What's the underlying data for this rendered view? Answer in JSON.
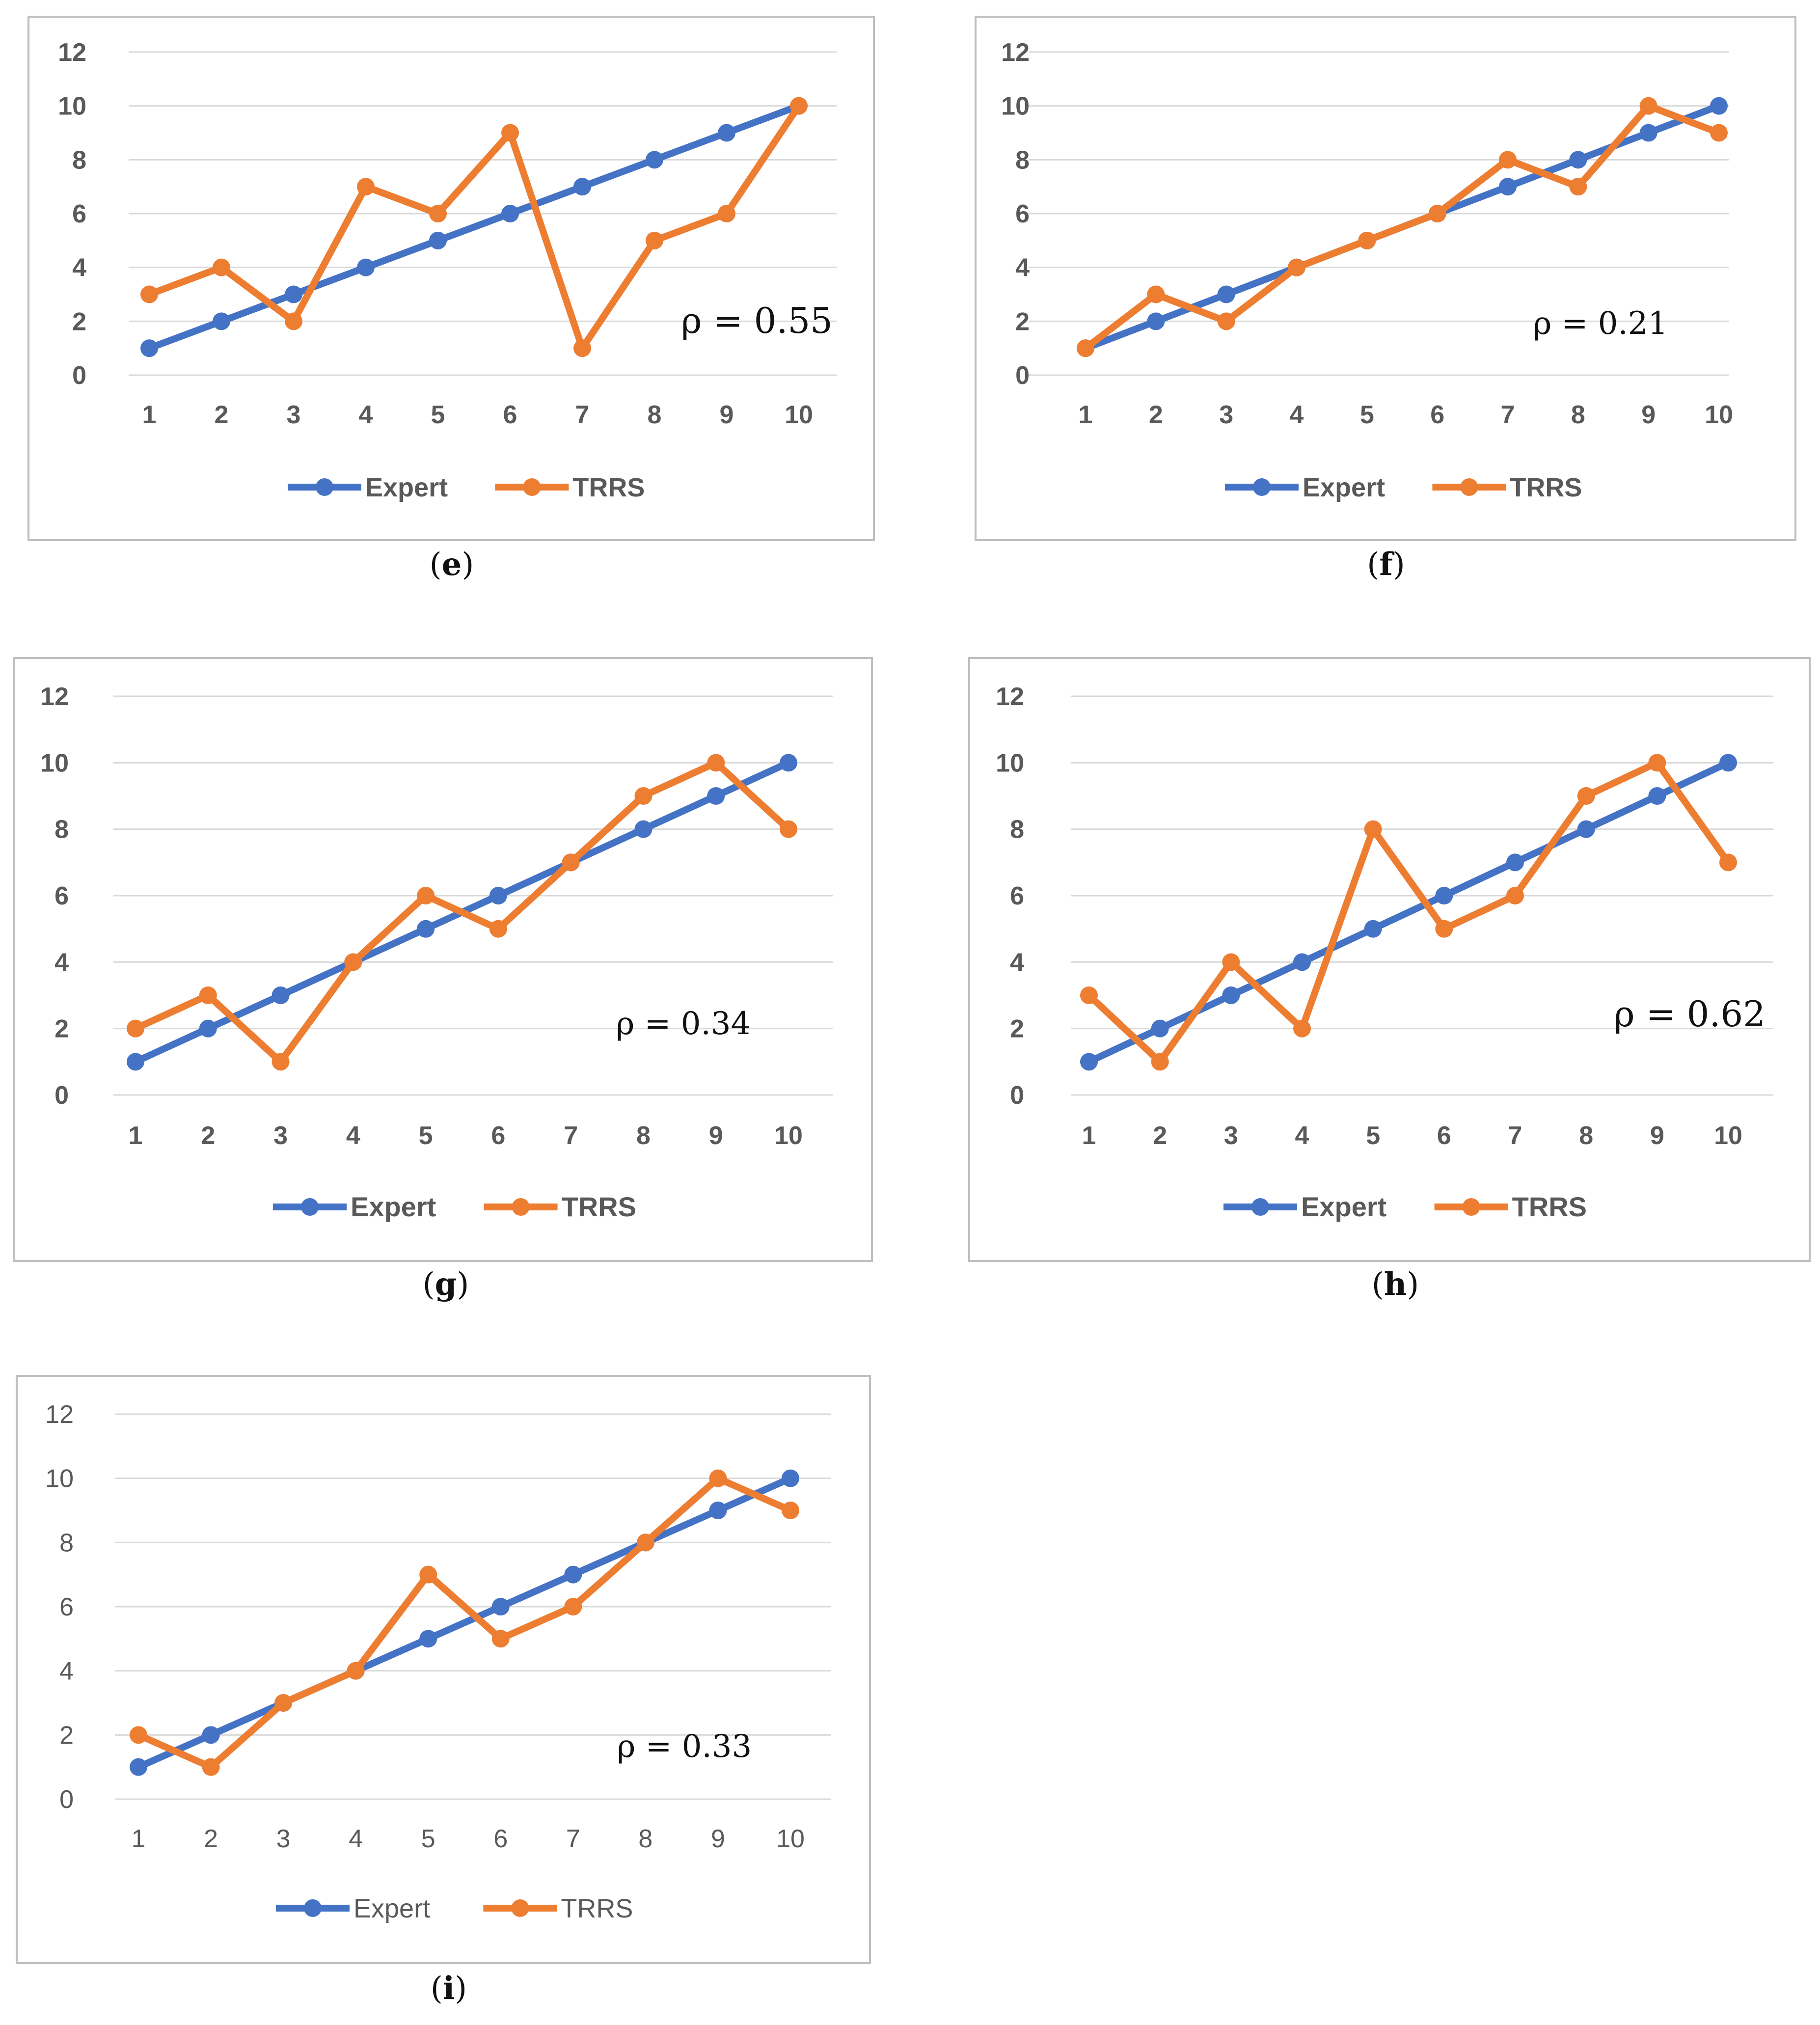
{
  "colors": {
    "expert": "#4472C4",
    "trrs": "#ED7D31",
    "grid": "#D9D9D9",
    "frame": "#BFBFBF",
    "tick": "#595959"
  },
  "chart_data": [
    {
      "id": "e",
      "type": "line",
      "caption": "e",
      "annotation": "ρ = 0.55",
      "categories": [
        "1",
        "2",
        "3",
        "4",
        "5",
        "6",
        "7",
        "8",
        "9",
        "10"
      ],
      "ylim": [
        0,
        12
      ],
      "yticks": [
        "0",
        "2",
        "4",
        "6",
        "8",
        "10",
        "12"
      ],
      "tick_weight": "bold",
      "legend_position": "bottom",
      "series": [
        {
          "name": "Expert",
          "values": [
            1,
            2,
            3,
            4,
            5,
            6,
            7,
            8,
            9,
            10
          ]
        },
        {
          "name": "TRRS",
          "values": [
            3,
            4,
            2,
            7,
            6,
            9,
            1,
            5,
            6,
            10
          ]
        }
      ]
    },
    {
      "id": "f",
      "type": "line",
      "caption": "f",
      "annotation": "ρ = 0.21",
      "categories": [
        "1",
        "2",
        "3",
        "4",
        "5",
        "6",
        "7",
        "8",
        "9",
        "10"
      ],
      "ylim": [
        0,
        12
      ],
      "yticks": [
        "0",
        "2",
        "4",
        "6",
        "8",
        "10",
        "12"
      ],
      "tick_weight": "bold",
      "legend_position": "bottom",
      "series": [
        {
          "name": "Expert",
          "values": [
            1,
            2,
            3,
            4,
            5,
            6,
            7,
            8,
            9,
            10
          ]
        },
        {
          "name": "TRRS",
          "values": [
            1,
            3,
            2,
            4,
            5,
            6,
            8,
            7,
            10,
            9
          ]
        }
      ]
    },
    {
      "id": "g",
      "type": "line",
      "caption": "g",
      "annotation": "ρ = 0.34",
      "categories": [
        "1",
        "2",
        "3",
        "4",
        "5",
        "6",
        "7",
        "8",
        "9",
        "10"
      ],
      "ylim": [
        0,
        12
      ],
      "yticks": [
        "0",
        "2",
        "4",
        "6",
        "8",
        "10",
        "12"
      ],
      "tick_weight": "bold",
      "legend_position": "bottom",
      "series": [
        {
          "name": "Expert",
          "values": [
            1,
            2,
            3,
            4,
            5,
            6,
            7,
            8,
            9,
            10
          ]
        },
        {
          "name": "TRRS",
          "values": [
            2,
            3,
            1,
            4,
            6,
            5,
            7,
            9,
            10,
            8
          ]
        }
      ]
    },
    {
      "id": "h",
      "type": "line",
      "caption": "h",
      "annotation": "ρ = 0.62",
      "categories": [
        "1",
        "2",
        "3",
        "4",
        "5",
        "6",
        "7",
        "8",
        "9",
        "10"
      ],
      "ylim": [
        0,
        12
      ],
      "yticks": [
        "0",
        "2",
        "4",
        "6",
        "8",
        "10",
        "12"
      ],
      "tick_weight": "bold",
      "legend_position": "bottom",
      "series": [
        {
          "name": "Expert",
          "values": [
            1,
            2,
            3,
            4,
            5,
            6,
            7,
            8,
            9,
            10
          ]
        },
        {
          "name": "TRRS",
          "values": [
            3,
            1,
            4,
            2,
            8,
            5,
            6,
            9,
            10,
            7
          ]
        }
      ]
    },
    {
      "id": "i",
      "type": "line",
      "caption": "i",
      "annotation": "ρ = 0.33",
      "categories": [
        "1",
        "2",
        "3",
        "4",
        "5",
        "6",
        "7",
        "8",
        "9",
        "10"
      ],
      "ylim": [
        0,
        12
      ],
      "yticks": [
        "0",
        "2",
        "4",
        "6",
        "8",
        "10",
        "12"
      ],
      "tick_weight": "normal",
      "legend_position": "bottom",
      "series": [
        {
          "name": "Expert",
          "values": [
            1,
            2,
            3,
            4,
            5,
            6,
            7,
            8,
            9,
            10
          ]
        },
        {
          "name": "TRRS",
          "values": [
            2,
            1,
            3,
            4,
            7,
            5,
            6,
            8,
            10,
            9
          ]
        }
      ]
    }
  ]
}
